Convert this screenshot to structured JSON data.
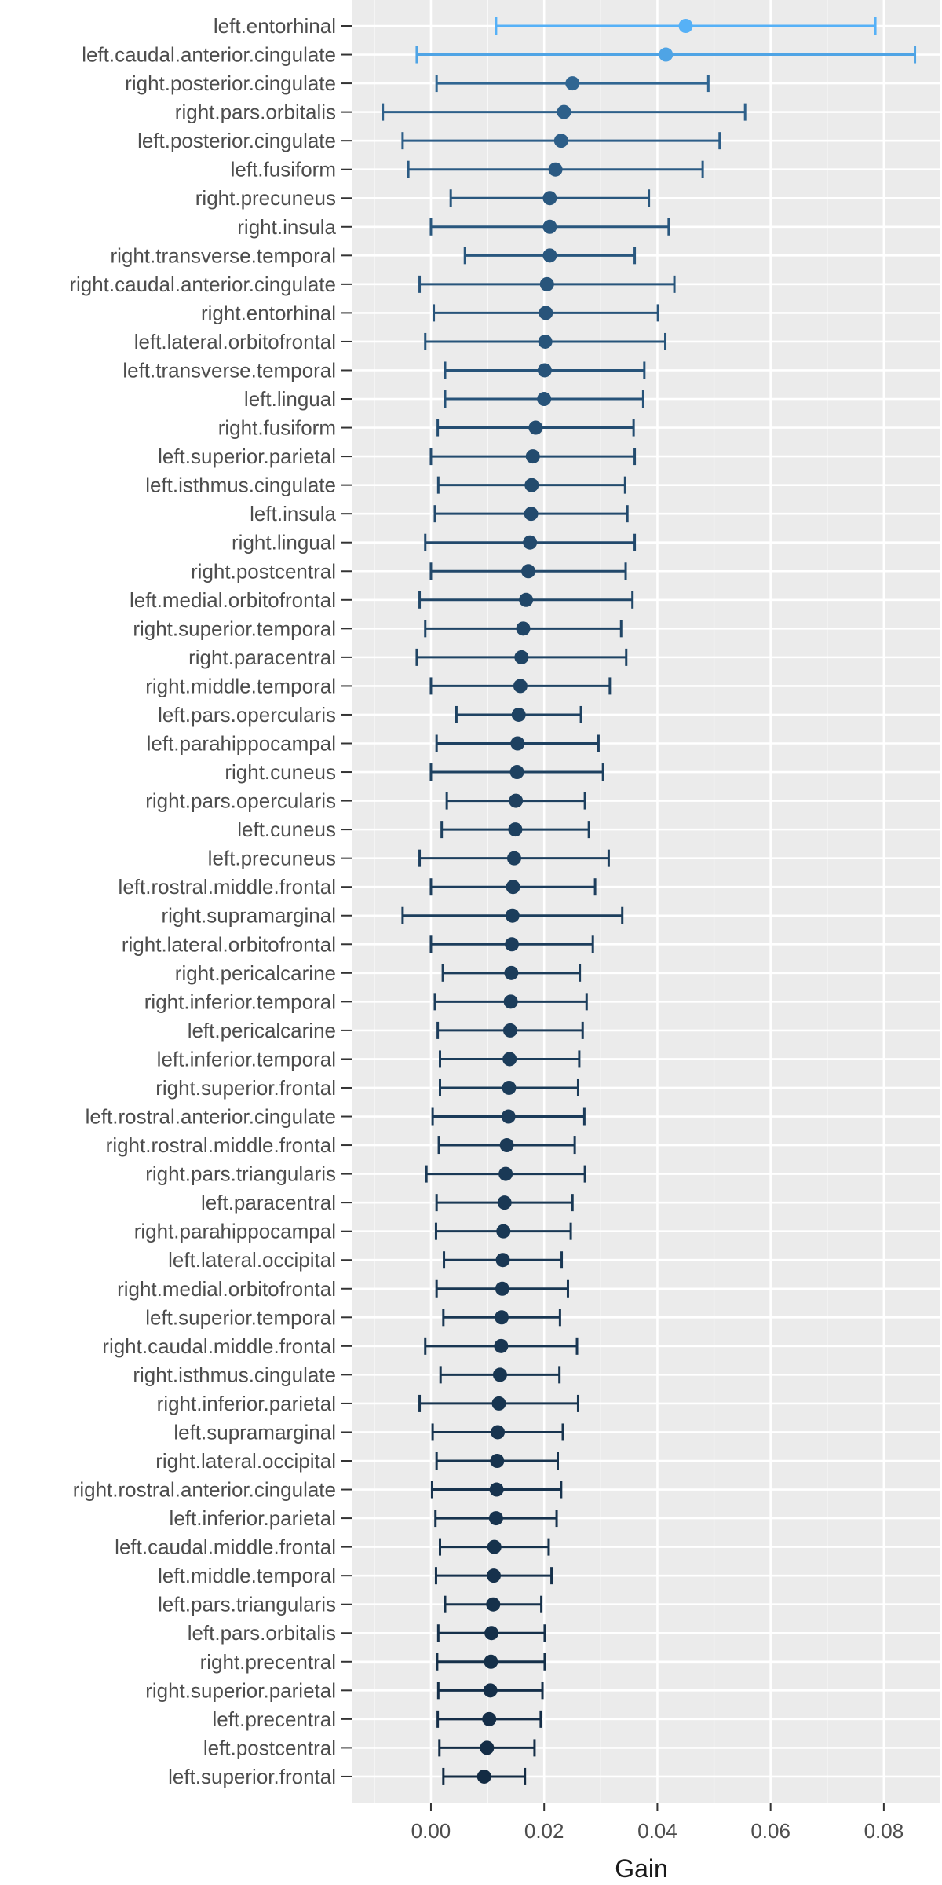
{
  "chart_data": {
    "type": "errorbar",
    "xlabel": "Gain",
    "ylabel": "",
    "title": "",
    "xlim": [
      -0.014,
      0.09
    ],
    "xticks": [
      0.0,
      0.02,
      0.04,
      0.06,
      0.08
    ],
    "xtick_labels": [
      "0.00",
      "0.02",
      "0.04",
      "0.06",
      "0.08"
    ],
    "grid": true,
    "legend": "none",
    "colors": {
      "panel": "#ebebeb",
      "grid": "#ffffff",
      "high": "#56b1f7",
      "low": "#132b43"
    },
    "points": [
      {
        "label": "left.entorhinal",
        "value": 0.045,
        "lower": 0.0115,
        "upper": 0.0785
      },
      {
        "label": "left.caudal.anterior.cingulate",
        "value": 0.0415,
        "lower": -0.0025,
        "upper": 0.0855
      },
      {
        "label": "right.posterior.cingulate",
        "value": 0.025,
        "lower": 0.001,
        "upper": 0.049
      },
      {
        "label": "right.pars.orbitalis",
        "value": 0.0235,
        "lower": -0.0085,
        "upper": 0.0555
      },
      {
        "label": "left.posterior.cingulate",
        "value": 0.023,
        "lower": -0.005,
        "upper": 0.051
      },
      {
        "label": "left.fusiform",
        "value": 0.022,
        "lower": -0.004,
        "upper": 0.048
      },
      {
        "label": "right.precuneus",
        "value": 0.021,
        "lower": 0.0035,
        "upper": 0.0385
      },
      {
        "label": "right.insula",
        "value": 0.021,
        "lower": 0.0,
        "upper": 0.042
      },
      {
        "label": "right.transverse.temporal",
        "value": 0.021,
        "lower": 0.006,
        "upper": 0.036
      },
      {
        "label": "right.caudal.anterior.cingulate",
        "value": 0.0205,
        "lower": -0.002,
        "upper": 0.043
      },
      {
        "label": "right.entorhinal",
        "value": 0.0203,
        "lower": 0.0005,
        "upper": 0.0401
      },
      {
        "label": "left.lateral.orbitofrontal",
        "value": 0.0202,
        "lower": -0.001,
        "upper": 0.0414
      },
      {
        "label": "left.transverse.temporal",
        "value": 0.0201,
        "lower": 0.0025,
        "upper": 0.0377
      },
      {
        "label": "left.lingual",
        "value": 0.02,
        "lower": 0.0025,
        "upper": 0.0375
      },
      {
        "label": "right.fusiform",
        "value": 0.0185,
        "lower": 0.0012,
        "upper": 0.0358
      },
      {
        "label": "left.superior.parietal",
        "value": 0.018,
        "lower": 0.0,
        "upper": 0.036
      },
      {
        "label": "left.isthmus.cingulate",
        "value": 0.0178,
        "lower": 0.0013,
        "upper": 0.0343
      },
      {
        "label": "left.insula",
        "value": 0.0177,
        "lower": 0.0007,
        "upper": 0.0347
      },
      {
        "label": "right.lingual",
        "value": 0.0175,
        "lower": -0.001,
        "upper": 0.036
      },
      {
        "label": "right.postcentral",
        "value": 0.0172,
        "lower": 0.0,
        "upper": 0.0344
      },
      {
        "label": "left.medial.orbitofrontal",
        "value": 0.0168,
        "lower": -0.002,
        "upper": 0.0356
      },
      {
        "label": "right.superior.temporal",
        "value": 0.0163,
        "lower": -0.001,
        "upper": 0.0336
      },
      {
        "label": "right.paracentral",
        "value": 0.016,
        "lower": -0.0025,
        "upper": 0.0345
      },
      {
        "label": "right.middle.temporal",
        "value": 0.0158,
        "lower": 0.0,
        "upper": 0.0316
      },
      {
        "label": "left.pars.opercularis",
        "value": 0.0155,
        "lower": 0.0045,
        "upper": 0.0265
      },
      {
        "label": "left.parahippocampal",
        "value": 0.0153,
        "lower": 0.001,
        "upper": 0.0296
      },
      {
        "label": "right.cuneus",
        "value": 0.0152,
        "lower": 0.0,
        "upper": 0.0304
      },
      {
        "label": "right.pars.opercularis",
        "value": 0.015,
        "lower": 0.0028,
        "upper": 0.0272
      },
      {
        "label": "left.cuneus",
        "value": 0.0149,
        "lower": 0.0019,
        "upper": 0.0279
      },
      {
        "label": "left.precuneus",
        "value": 0.0147,
        "lower": -0.002,
        "upper": 0.0314
      },
      {
        "label": "left.rostral.middle.frontal",
        "value": 0.0145,
        "lower": 0.0,
        "upper": 0.029
      },
      {
        "label": "right.supramarginal",
        "value": 0.0144,
        "lower": -0.005,
        "upper": 0.0338
      },
      {
        "label": "right.lateral.orbitofrontal",
        "value": 0.0143,
        "lower": 0.0,
        "upper": 0.0286
      },
      {
        "label": "right.pericalcarine",
        "value": 0.0142,
        "lower": 0.0021,
        "upper": 0.0263
      },
      {
        "label": "right.inferior.temporal",
        "value": 0.0141,
        "lower": 0.0007,
        "upper": 0.0275
      },
      {
        "label": "left.pericalcarine",
        "value": 0.014,
        "lower": 0.0012,
        "upper": 0.0268
      },
      {
        "label": "left.inferior.temporal",
        "value": 0.0139,
        "lower": 0.0016,
        "upper": 0.0262
      },
      {
        "label": "right.superior.frontal",
        "value": 0.0138,
        "lower": 0.0016,
        "upper": 0.026
      },
      {
        "label": "left.rostral.anterior.cingulate",
        "value": 0.0137,
        "lower": 0.0003,
        "upper": 0.0271
      },
      {
        "label": "right.rostral.middle.frontal",
        "value": 0.0134,
        "lower": 0.0014,
        "upper": 0.0254
      },
      {
        "label": "right.pars.triangularis",
        "value": 0.0132,
        "lower": -0.0008,
        "upper": 0.0272
      },
      {
        "label": "left.paracentral",
        "value": 0.013,
        "lower": 0.001,
        "upper": 0.025
      },
      {
        "label": "right.parahippocampal",
        "value": 0.0128,
        "lower": 0.0009,
        "upper": 0.0247
      },
      {
        "label": "left.lateral.occipital",
        "value": 0.0127,
        "lower": 0.0023,
        "upper": 0.0231
      },
      {
        "label": "right.medial.orbitofrontal",
        "value": 0.0126,
        "lower": 0.001,
        "upper": 0.0242
      },
      {
        "label": "left.superior.temporal",
        "value": 0.0125,
        "lower": 0.0022,
        "upper": 0.0228
      },
      {
        "label": "right.caudal.middle.frontal",
        "value": 0.0124,
        "lower": -0.001,
        "upper": 0.0258
      },
      {
        "label": "right.isthmus.cingulate",
        "value": 0.0122,
        "lower": 0.0017,
        "upper": 0.0227
      },
      {
        "label": "right.inferior.parietal",
        "value": 0.012,
        "lower": -0.002,
        "upper": 0.026
      },
      {
        "label": "left.supramarginal",
        "value": 0.0118,
        "lower": 0.0003,
        "upper": 0.0233
      },
      {
        "label": "right.lateral.occipital",
        "value": 0.0117,
        "lower": 0.001,
        "upper": 0.0224
      },
      {
        "label": "right.rostral.anterior.cingulate",
        "value": 0.0116,
        "lower": 0.0002,
        "upper": 0.023
      },
      {
        "label": "left.inferior.parietal",
        "value": 0.0115,
        "lower": 0.0008,
        "upper": 0.0222
      },
      {
        "label": "left.caudal.middle.frontal",
        "value": 0.0112,
        "lower": 0.0016,
        "upper": 0.0208
      },
      {
        "label": "left.middle.temporal",
        "value": 0.0111,
        "lower": 0.0009,
        "upper": 0.0213
      },
      {
        "label": "left.pars.triangularis",
        "value": 0.011,
        "lower": 0.0025,
        "upper": 0.0195
      },
      {
        "label": "left.pars.orbitalis",
        "value": 0.0107,
        "lower": 0.0013,
        "upper": 0.0201
      },
      {
        "label": "right.precentral",
        "value": 0.0106,
        "lower": 0.0011,
        "upper": 0.0201
      },
      {
        "label": "right.superior.parietal",
        "value": 0.0105,
        "lower": 0.0013,
        "upper": 0.0197
      },
      {
        "label": "left.precentral",
        "value": 0.0103,
        "lower": 0.0012,
        "upper": 0.0194
      },
      {
        "label": "left.postcentral",
        "value": 0.0099,
        "lower": 0.0015,
        "upper": 0.0183
      },
      {
        "label": "left.superior.frontal",
        "value": 0.0094,
        "lower": 0.0022,
        "upper": 0.0166
      }
    ]
  }
}
